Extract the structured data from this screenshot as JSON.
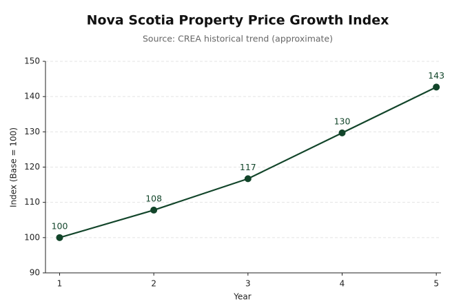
{
  "chart_data": {
    "type": "line",
    "title": "Nova Scotia Property Price Growth Index",
    "subtitle": "Source: CREA historical trend (approximate)",
    "x_label": "Year",
    "y_label": "Index (Base = 100)",
    "x": [
      1,
      2,
      3,
      4,
      5
    ],
    "series": [
      {
        "color": "#12452a",
        "values": [
          100,
          107.8,
          116.7,
          129.7,
          142.7
        ],
        "value_labels": [
          "100",
          "108",
          "117",
          "130",
          "143"
        ]
      }
    ],
    "xlim": [
      0.85,
      5.05
    ],
    "xticks": [
      1,
      2,
      3,
      4,
      5
    ],
    "ylim": [
      90,
      150
    ],
    "yticks": [
      90,
      100,
      110,
      120,
      130,
      140,
      150
    ],
    "grid": true
  }
}
